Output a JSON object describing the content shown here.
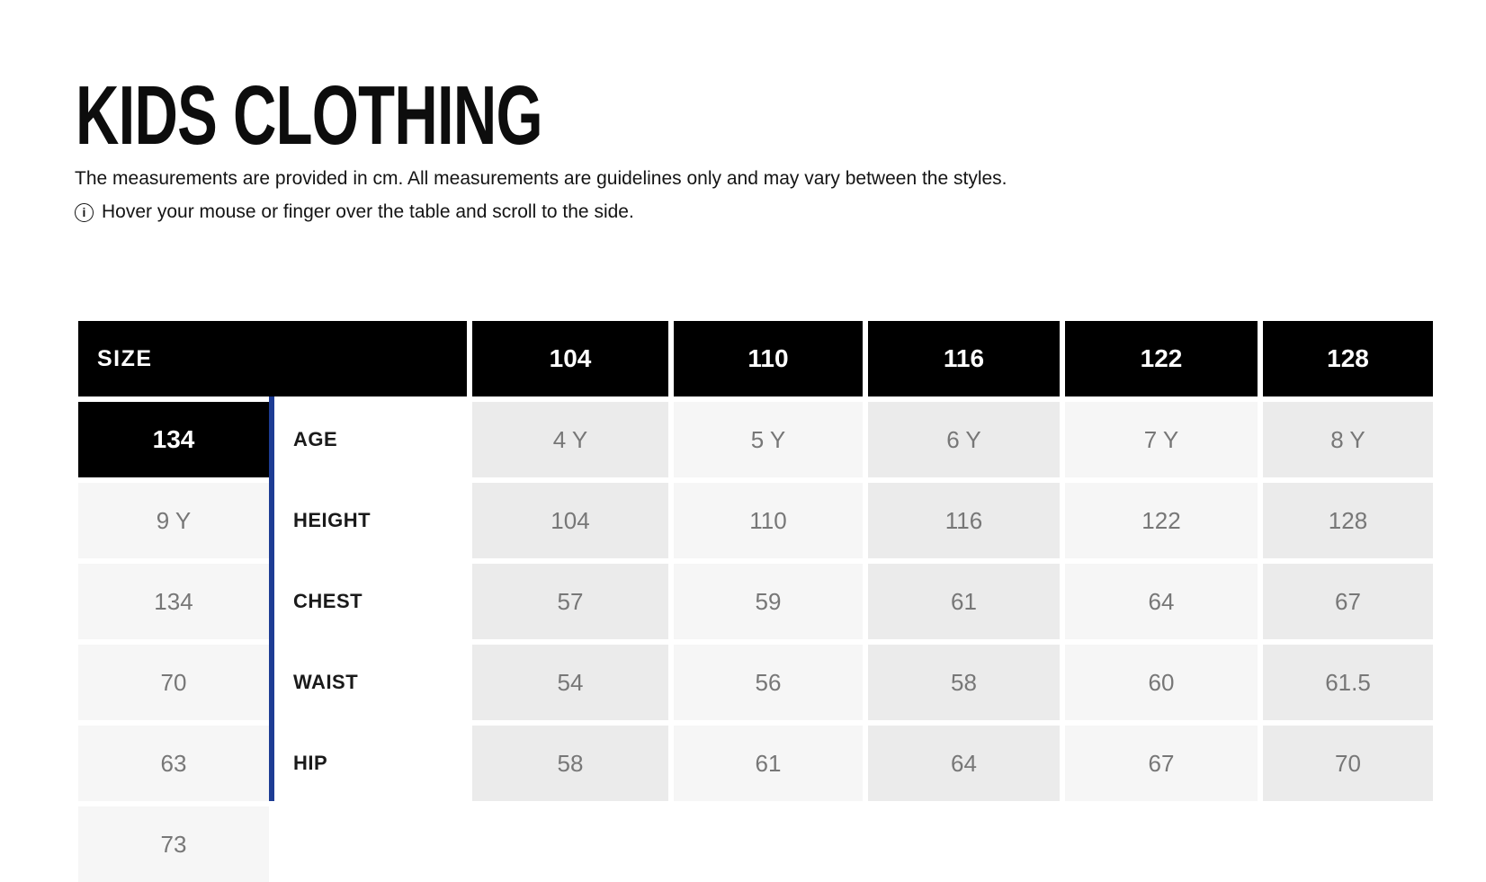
{
  "page": {
    "title": "KIDS CLOTHING"
  },
  "intro": {
    "text": "The measurements are provided in cm. All measurements are guidelines only and may vary between the styles.",
    "hint": "Hover your mouse or finger over the table and scroll to the side.",
    "info_icon": "i"
  },
  "table": {
    "header": {
      "label": "SIZE",
      "sizes": [
        "104",
        "110",
        "116",
        "122",
        "128",
        "134"
      ]
    },
    "rows": [
      {
        "label": "AGE",
        "values": [
          "4 Y",
          "5 Y",
          "6 Y",
          "7 Y",
          "8 Y",
          "9 Y"
        ]
      },
      {
        "label": "HEIGHT",
        "values": [
          "104",
          "110",
          "116",
          "122",
          "128",
          "134"
        ]
      },
      {
        "label": "CHEST",
        "values": [
          "57",
          "59",
          "61",
          "64",
          "67",
          "70"
        ]
      },
      {
        "label": "WAIST",
        "values": [
          "54",
          "56",
          "58",
          "60",
          "61.5",
          "63"
        ]
      },
      {
        "label": "HIP",
        "values": [
          "58",
          "61",
          "64",
          "67",
          "70",
          "73"
        ]
      }
    ]
  },
  "colors": {
    "header_bg": "#000000",
    "header_text": "#ffffff",
    "column_shaded": "#ebebeb",
    "column_plain": "#f6f6f6",
    "value_text": "#777777",
    "label_text": "#1a1a1a",
    "accent_line": "#1d3c94"
  }
}
